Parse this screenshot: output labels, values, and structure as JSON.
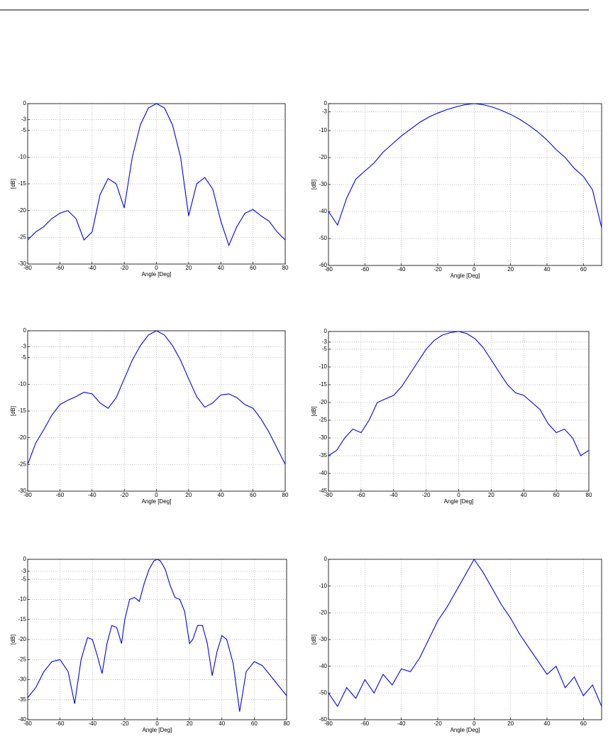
{
  "chart_data": [
    {
      "type": "line",
      "xlabel": "Angle [Deg]",
      "ylabel": "[dB]",
      "xlim": [
        -80,
        80
      ],
      "ylim": [
        -30,
        0
      ],
      "xticks": [
        -80,
        -60,
        -40,
        -20,
        0,
        20,
        40,
        60,
        80
      ],
      "yticks": [
        0,
        -3,
        -5,
        -10,
        -15,
        -20,
        -25,
        -30
      ],
      "grid": true,
      "x": [
        -80,
        -75,
        -70,
        -65,
        -60,
        -55,
        -50,
        -45,
        -40,
        -35,
        -30,
        -25,
        -20,
        -15,
        -10,
        -5,
        0,
        5,
        10,
        15,
        20,
        25,
        30,
        35,
        40,
        45,
        50,
        55,
        60,
        65,
        70,
        75,
        80
      ],
      "series": [
        {
          "color": "#0000ff",
          "values": [
            -25.5,
            -24,
            -23,
            -21.5,
            -20.5,
            -20,
            -21.5,
            -25.5,
            -24,
            -17,
            -14,
            -15,
            -19.5,
            -10,
            -4,
            -0.8,
            0,
            -0.8,
            -4,
            -10,
            -21,
            -15,
            -13.8,
            -16,
            -22,
            -26.5,
            -23,
            -20.5,
            -19.8,
            -21,
            -22,
            -24,
            -25.5
          ]
        }
      ]
    },
    {
      "type": "line",
      "xlabel": "Angle [Deg]",
      "ylabel": "[dB]",
      "xlim": [
        -80,
        70
      ],
      "ylim": [
        -60,
        0
      ],
      "xticks": [
        -80,
        -60,
        -40,
        -20,
        0,
        20,
        40,
        60
      ],
      "yticks": [
        0,
        -3,
        -10,
        -20,
        -30,
        -40,
        -50,
        -60
      ],
      "grid": true,
      "x": [
        -80,
        -75,
        -70,
        -65,
        -60,
        -55,
        -50,
        -45,
        -40,
        -35,
        -30,
        -25,
        -20,
        -15,
        -10,
        -5,
        0,
        5,
        10,
        15,
        20,
        25,
        30,
        35,
        40,
        45,
        50,
        55,
        60,
        65,
        70
      ],
      "series": [
        {
          "color": "#0000ff",
          "values": [
            -40,
            -45,
            -35,
            -28,
            -25,
            -22,
            -18,
            -15,
            -12,
            -9.5,
            -7,
            -5,
            -3.5,
            -2.2,
            -1.2,
            -0.4,
            0,
            -0.4,
            -1.3,
            -2.5,
            -4,
            -5.8,
            -8,
            -10.5,
            -13.5,
            -17,
            -20,
            -24,
            -27,
            -32,
            -46
          ]
        }
      ]
    },
    {
      "type": "line",
      "xlabel": "Angle [Deg]",
      "ylabel": "[dB]",
      "xlim": [
        -80,
        80
      ],
      "ylim": [
        -30,
        0
      ],
      "xticks": [
        -80,
        -60,
        -40,
        -20,
        0,
        20,
        40,
        60,
        80
      ],
      "yticks": [
        0,
        -3,
        -5,
        -10,
        -15,
        -20,
        -25,
        -30
      ],
      "grid": true,
      "x": [
        -80,
        -75,
        -70,
        -65,
        -60,
        -55,
        -50,
        -45,
        -40,
        -35,
        -30,
        -25,
        -20,
        -15,
        -10,
        -5,
        0,
        5,
        10,
        15,
        20,
        25,
        30,
        35,
        40,
        45,
        50,
        55,
        60,
        65,
        70,
        75,
        80
      ],
      "series": [
        {
          "color": "#0000ff",
          "values": [
            -25,
            -21,
            -18.5,
            -15.8,
            -13.8,
            -13,
            -12.3,
            -11.5,
            -11.8,
            -13.5,
            -14.5,
            -12.5,
            -9,
            -5.5,
            -2.8,
            -0.8,
            0,
            -0.8,
            -2.8,
            -5.5,
            -9,
            -12.3,
            -14.3,
            -13.5,
            -12,
            -11.8,
            -12.5,
            -13.8,
            -14.5,
            -16.5,
            -19,
            -22,
            -25
          ]
        }
      ]
    },
    {
      "type": "line",
      "xlabel": "Angle [Deg]",
      "ylabel": "[dB]",
      "xlim": [
        -80,
        80
      ],
      "ylim": [
        -45,
        0
      ],
      "xticks": [
        -80,
        -60,
        -40,
        -20,
        0,
        20,
        40,
        60,
        80
      ],
      "yticks": [
        0,
        -3,
        -5,
        -10,
        -15,
        -20,
        -25,
        -30,
        -35,
        -40,
        -45
      ],
      "grid": true,
      "x": [
        -80,
        -75,
        -70,
        -65,
        -60,
        -55,
        -50,
        -45,
        -40,
        -35,
        -30,
        -25,
        -20,
        -15,
        -10,
        -5,
        0,
        5,
        10,
        15,
        20,
        25,
        30,
        35,
        40,
        45,
        50,
        55,
        60,
        65,
        70,
        75,
        80
      ],
      "series": [
        {
          "color": "#0000ff",
          "values": [
            -35,
            -33.5,
            -30,
            -27.5,
            -28.5,
            -25,
            -20,
            -19,
            -18,
            -15.5,
            -12,
            -8.5,
            -5,
            -2.5,
            -1,
            -0.3,
            0,
            -0.6,
            -2,
            -4.5,
            -8,
            -11.5,
            -15,
            -17.3,
            -18,
            -20,
            -22,
            -26,
            -28.5,
            -27.5,
            -30,
            -35,
            -33.5
          ]
        }
      ]
    },
    {
      "type": "line",
      "xlabel": "Angle [Deg]",
      "ylabel": "[dB]",
      "xlim": [
        -80,
        80
      ],
      "ylim": [
        -40,
        0
      ],
      "xticks": [
        -80,
        -60,
        -40,
        -20,
        0,
        20,
        40,
        60,
        80
      ],
      "yticks": [
        0,
        -3,
        -5,
        -10,
        -15,
        -20,
        -25,
        -30,
        -35,
        -40
      ],
      "grid": true,
      "x": [
        -80,
        -75,
        -70,
        -65,
        -60,
        -55,
        -51,
        -47,
        -43,
        -40,
        -37,
        -34,
        -31,
        -28,
        -25,
        -22,
        -20,
        -17,
        -14,
        -11,
        -8,
        -5,
        -2,
        0,
        2,
        5,
        8,
        11,
        14,
        17,
        20,
        22,
        25,
        28,
        31,
        34,
        37,
        40,
        43,
        47,
        51,
        55,
        60,
        65,
        70,
        75,
        80
      ],
      "series": [
        {
          "color": "#0000ff",
          "values": [
            -34.5,
            -32,
            -28,
            -25.5,
            -25,
            -28,
            -36,
            -25,
            -19.5,
            -20,
            -24,
            -28.5,
            -21,
            -16.5,
            -17,
            -21,
            -15,
            -10,
            -9.5,
            -10.5,
            -6,
            -2.5,
            -0.4,
            0,
            -0.4,
            -2.5,
            -6.5,
            -9.5,
            -10,
            -13,
            -21,
            -20,
            -16.5,
            -16.5,
            -21,
            -29,
            -23,
            -19,
            -20,
            -26,
            -38,
            -28,
            -25.5,
            -26.5,
            -29,
            -31.5,
            -34
          ]
        }
      ]
    },
    {
      "type": "line",
      "xlabel": "Angle [Deg]",
      "ylabel": "[dB]",
      "xlim": [
        -80,
        70
      ],
      "ylim": [
        -60,
        0
      ],
      "xticks": [
        -80,
        -60,
        -40,
        -20,
        0,
        20,
        40,
        60
      ],
      "yticks": [
        0,
        -10,
        -20,
        -30,
        -40,
        -50,
        -60
      ],
      "grid": true,
      "x": [
        -80,
        -75,
        -70,
        -65,
        -60,
        -55,
        -50,
        -45,
        -40,
        -35,
        -30,
        -25,
        -20,
        -15,
        -10,
        -5,
        0,
        5,
        10,
        15,
        20,
        25,
        30,
        35,
        40,
        45,
        50,
        55,
        60,
        65,
        70
      ],
      "series": [
        {
          "color": "#0000ff",
          "values": [
            -50,
            -55,
            -48,
            -52,
            -45,
            -50,
            -43,
            -47,
            -41,
            -42,
            -37,
            -30,
            -23,
            -18,
            -12,
            -6,
            0,
            -5,
            -11,
            -17,
            -22,
            -28,
            -33,
            -38,
            -43,
            -40,
            -48,
            -44,
            -51,
            -47,
            -55
          ]
        }
      ]
    }
  ]
}
